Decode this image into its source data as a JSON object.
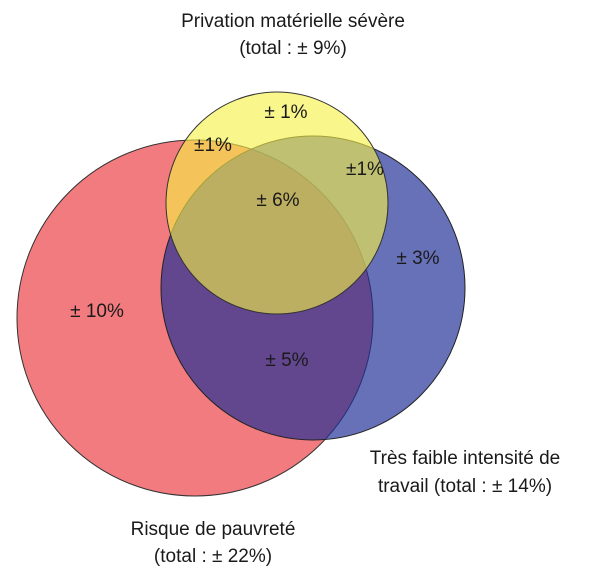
{
  "sets": [
    {
      "label": [
        "Privation matérielle sévère",
        "(total : ± 9%)"
      ]
    },
    {
      "label": [
        "Risque de pauvreté",
        "(total : ± 22%)"
      ]
    },
    {
      "label": [
        "Très faible intensité de",
        "travail (total : ± 14%)"
      ]
    }
  ],
  "regions": [
    "± 1%",
    "±1%",
    "±1%",
    "± 6%",
    "± 3%",
    "± 10%",
    "± 5%"
  ]
}
